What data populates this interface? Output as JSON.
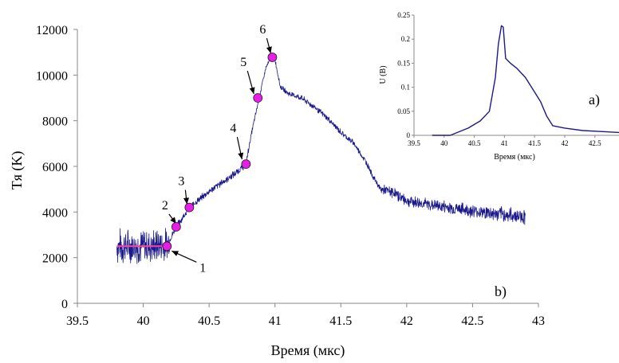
{
  "chart_data": [
    {
      "id": "main",
      "type": "line",
      "panel_label": "b)",
      "xlabel": "Время (мкс)",
      "ylabel": "Tя (K)",
      "xlim": [
        39.5,
        43
      ],
      "ylim": [
        0,
        12000
      ],
      "x_ticks": [
        "39.5",
        "40",
        "40.5",
        "41",
        "41.5",
        "42",
        "42.5",
        "43"
      ],
      "y_ticks": [
        "0",
        "2000",
        "4000",
        "6000",
        "8000",
        "10000",
        "12000"
      ],
      "grid": false,
      "series": [
        {
          "color": "#1a1a8c",
          "noisy": true,
          "x": [
            39.8,
            40.0,
            40.18,
            40.22,
            40.25,
            40.35,
            40.5,
            40.7,
            40.78,
            40.82,
            40.88,
            40.93,
            40.97,
            41.0,
            41.04,
            41.1,
            41.2,
            41.3,
            41.4,
            41.5,
            41.6,
            41.7,
            41.75,
            41.8,
            41.9,
            42.0,
            42.2,
            42.5,
            42.7,
            42.9
          ],
          "y": [
            2500,
            2500,
            2520,
            3000,
            3350,
            4200,
            4900,
            5700,
            6100,
            7400,
            9000,
            10300,
            10750,
            10700,
            9500,
            9200,
            9000,
            8600,
            8100,
            7500,
            7000,
            6100,
            5500,
            5000,
            4850,
            4500,
            4300,
            4050,
            3900,
            3800
          ]
        },
        {
          "color": "#ff40a0",
          "x": [
            39.8,
            40.18
          ],
          "y": [
            2500,
            2500
          ]
        }
      ],
      "markers": [
        {
          "label": "1",
          "x": 40.18,
          "y": 2500
        },
        {
          "label": "2",
          "x": 40.25,
          "y": 3350
        },
        {
          "label": "3",
          "x": 40.35,
          "y": 4200
        },
        {
          "label": "4",
          "x": 40.78,
          "y": 6100
        },
        {
          "label": "5",
          "x": 40.87,
          "y": 9000
        },
        {
          "label": "6",
          "x": 40.98,
          "y": 10780
        }
      ],
      "marker_color": "#e81ee8"
    },
    {
      "id": "inset",
      "type": "line",
      "panel_label": "a)",
      "xlabel": "Время (мкс)",
      "ylabel": "U (В)",
      "xlim": [
        39.5,
        42.9
      ],
      "ylim": [
        0,
        0.25
      ],
      "x_ticks": [
        "39.5",
        "40",
        "40.5",
        "41",
        "41.5",
        "42",
        "42.5"
      ],
      "y_ticks": [
        "0",
        "0.05",
        "0.1",
        "0.15",
        "0.2",
        "0.25"
      ],
      "grid": false,
      "series": [
        {
          "color": "#1a1a8c",
          "x": [
            39.8,
            40.1,
            40.2,
            40.4,
            40.6,
            40.75,
            40.85,
            40.9,
            40.95,
            40.98,
            41.02,
            41.1,
            41.2,
            41.35,
            41.45,
            41.55,
            41.6,
            41.7,
            41.8,
            42.0,
            42.3,
            42.6,
            42.9
          ],
          "y": [
            0.0,
            0.0,
            0.005,
            0.015,
            0.03,
            0.05,
            0.12,
            0.19,
            0.228,
            0.225,
            0.16,
            0.15,
            0.14,
            0.12,
            0.1,
            0.08,
            0.07,
            0.04,
            0.02,
            0.015,
            0.01,
            0.008,
            0.006
          ]
        }
      ]
    }
  ]
}
